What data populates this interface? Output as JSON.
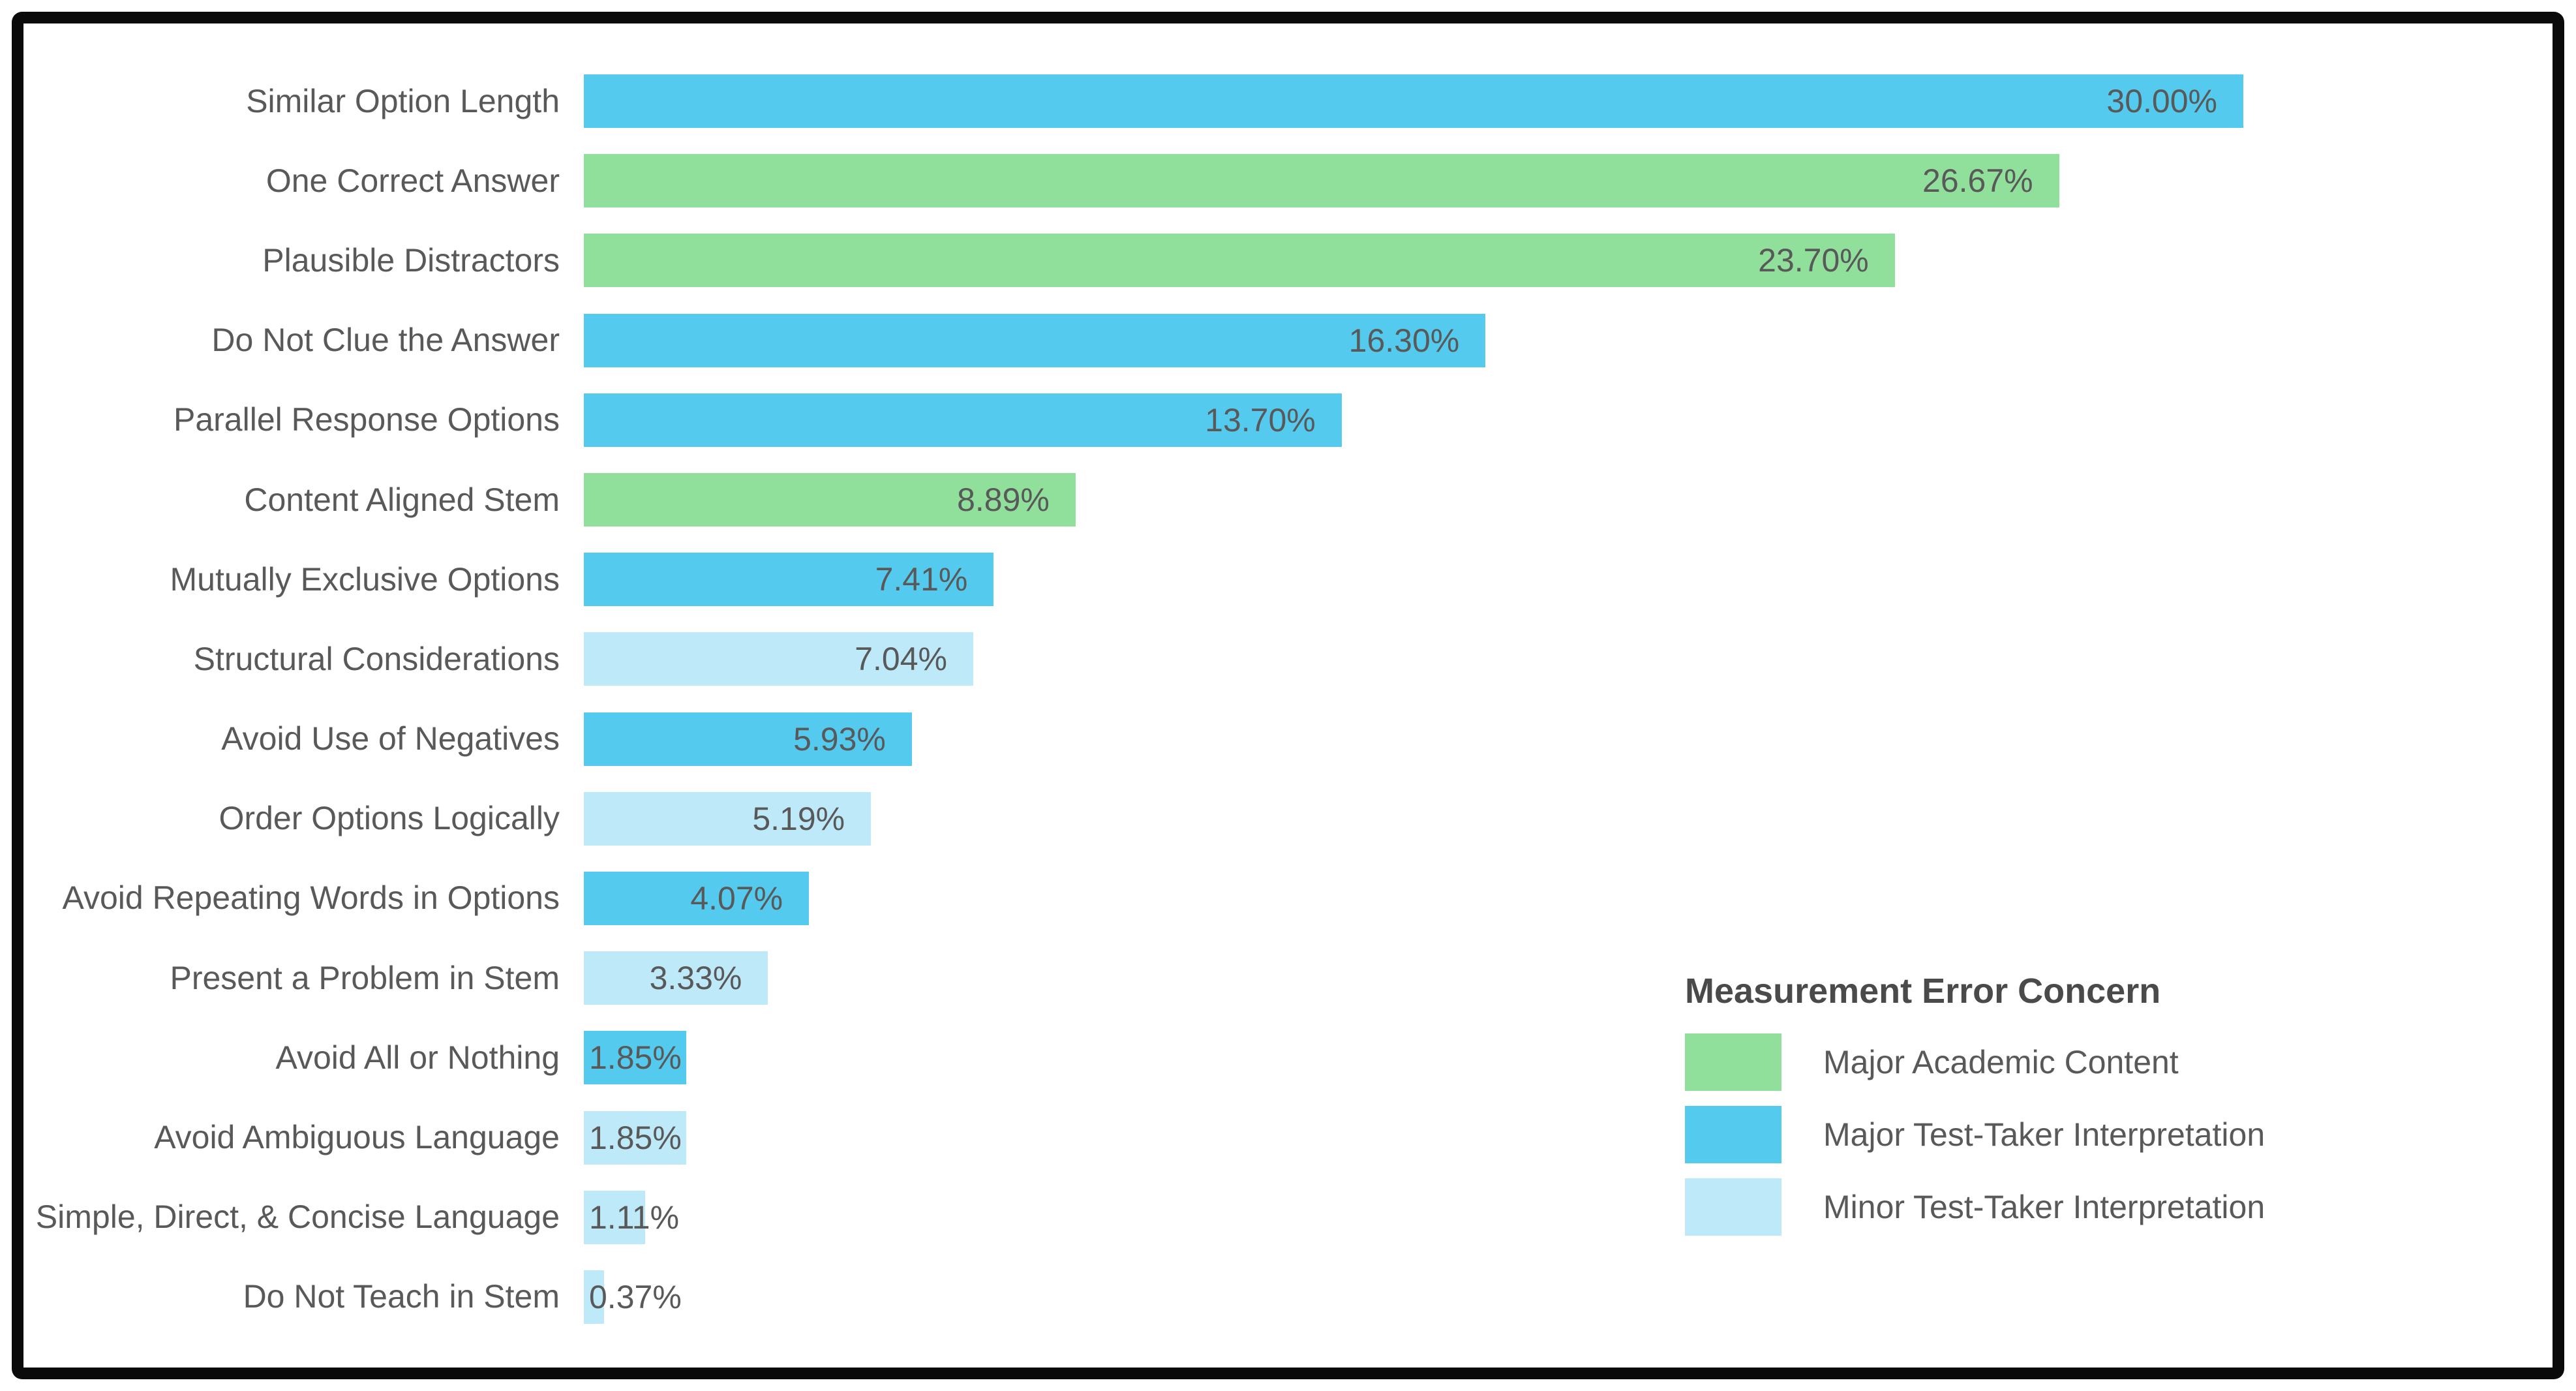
{
  "chart_data": {
    "type": "bar",
    "orientation": "horizontal",
    "title": "",
    "xlabel": "",
    "ylabel": "",
    "xlim": [
      0,
      30
    ],
    "grid": false,
    "value_format": "percent_two_decimals",
    "legend_position": "bottom-right",
    "categories": [
      "Similar Option Length",
      "One Correct Answer",
      "Plausible Distractors",
      "Do Not Clue the Answer",
      "Parallel Response Options",
      "Content Aligned Stem",
      "Mutually Exclusive Options",
      "Structural Considerations",
      "Avoid Use of Negatives",
      "Order Options Logically",
      "Avoid Repeating Words in Options",
      "Present a Problem in Stem",
      "Avoid All or Nothing",
      "Avoid Ambiguous Language",
      "Simple, Direct, & Concise Language",
      "Do Not Teach in Stem"
    ],
    "values": [
      30.0,
      26.67,
      23.7,
      16.3,
      13.7,
      8.89,
      7.41,
      7.04,
      5.93,
      5.19,
      4.07,
      3.33,
      1.85,
      1.85,
      1.11,
      0.37
    ],
    "value_labels": [
      "30.00%",
      "26.67%",
      "23.70%",
      "16.30%",
      "13.70%",
      "8.89%",
      "7.41%",
      "7.04%",
      "5.93%",
      "5.19%",
      "4.07%",
      "3.33%",
      "1.85%",
      "1.85%",
      "1.11%",
      "0.37%"
    ],
    "bar_series": [
      "major_test_taker",
      "major_academic",
      "major_academic",
      "major_test_taker",
      "major_test_taker",
      "major_academic",
      "major_test_taker",
      "minor_test_taker",
      "major_test_taker",
      "minor_test_taker",
      "major_test_taker",
      "minor_test_taker",
      "major_test_taker",
      "minor_test_taker",
      "minor_test_taker",
      "minor_test_taker"
    ],
    "series": {
      "major_academic": {
        "label": "Major Academic Content",
        "color": "#90DF9B"
      },
      "major_test_taker": {
        "label": "Major Test-Taker Interpretation",
        "color": "#54CBEE"
      },
      "minor_test_taker": {
        "label": "Minor Test-Taker Interpretation",
        "color": "#BEE9F9"
      }
    }
  },
  "legend": {
    "title": "Measurement Error Concern",
    "items": [
      {
        "label": "Major Academic Content",
        "color": "#90DF9B"
      },
      {
        "label": "Major Test-Taker Interpretation",
        "color": "#54CBEE"
      },
      {
        "label": "Minor Test-Taker Interpretation",
        "color": "#BEE9F9"
      }
    ]
  },
  "colors": {
    "background": "#FFFFFF",
    "border": "#0A0A0A",
    "text": "#595959",
    "legend_title_text": "#4A4A4A"
  }
}
